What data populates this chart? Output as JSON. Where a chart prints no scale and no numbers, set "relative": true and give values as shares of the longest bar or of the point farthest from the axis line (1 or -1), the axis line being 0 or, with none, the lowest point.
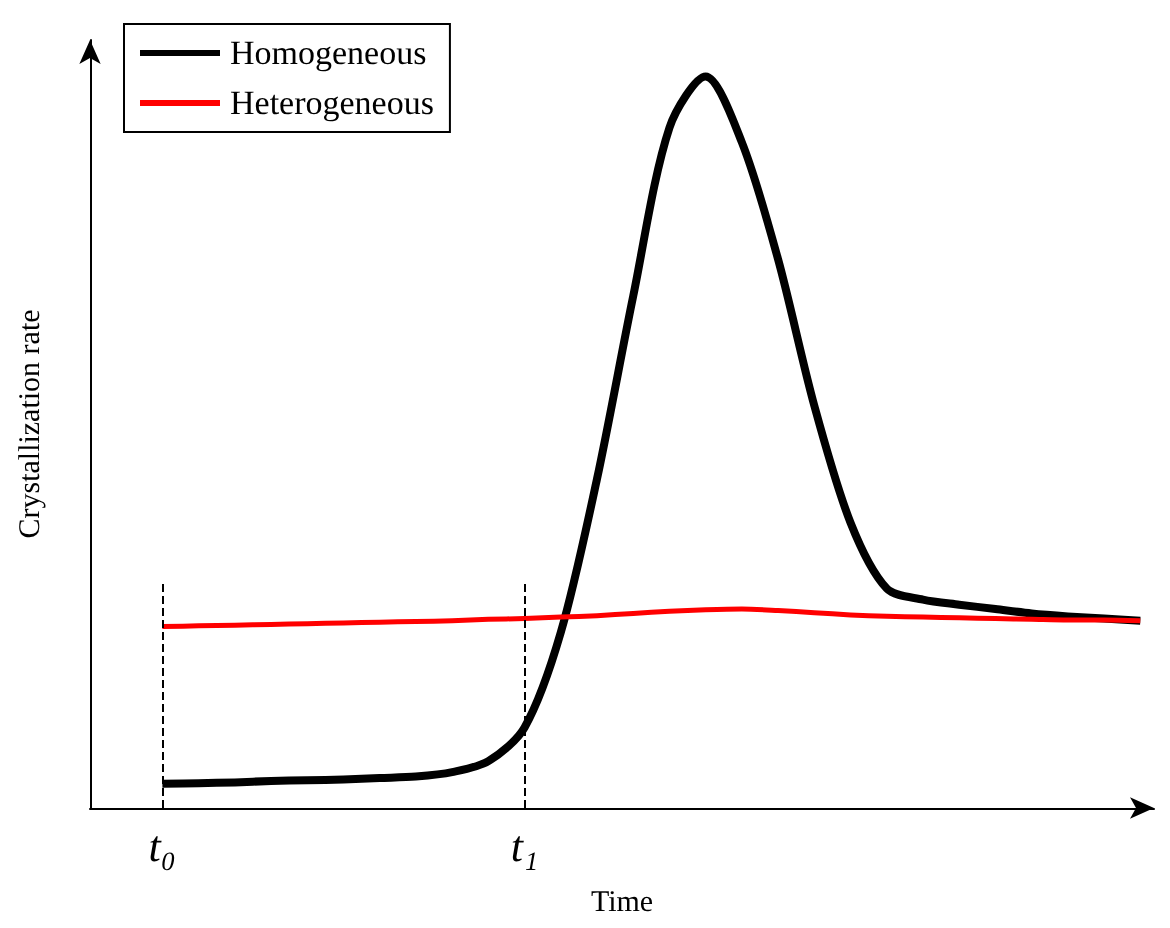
{
  "chart_data": {
    "type": "line",
    "xlabel": "Time",
    "ylabel": "Crystallization rate",
    "relative": true,
    "categories": [
      "t₀",
      null,
      null,
      null,
      null,
      null,
      null,
      null,
      null,
      null,
      "t₁",
      null,
      null,
      null,
      null,
      null,
      null,
      null,
      null,
      null,
      null,
      null,
      null,
      null,
      null,
      null,
      null,
      null
    ],
    "tick_labels": "x",
    "grid": false,
    "legend": "top left",
    "marker": "none",
    "line_style": "solid",
    "ref_lines": [
      {
        "axis": "x",
        "value": "t₀",
        "line_style": "dashed",
        "color": "#000000"
      },
      {
        "axis": "x",
        "value": "t₁",
        "line_style": "dashed",
        "color": "#000000"
      }
    ],
    "series": [
      {
        "name": "Homogeneous",
        "color": "#000000",
        "values": [
          0.033,
          0.034,
          0.035,
          0.037,
          0.038,
          0.039,
          0.041,
          0.043,
          0.049,
          0.064,
          0.11,
          0.24,
          0.45,
          0.7,
          0.93,
          1.0,
          0.91,
          0.75,
          0.55,
          0.39,
          0.3,
          0.285,
          0.278,
          0.272,
          0.266,
          0.262,
          0.259,
          0.256
        ]
      },
      {
        "name": "Heterogeneous",
        "color": "#ff0000",
        "values": [
          0.248,
          0.249,
          0.25,
          0.251,
          0.252,
          0.253,
          0.254,
          0.255,
          0.256,
          0.258,
          0.259,
          0.261,
          0.263,
          0.266,
          0.269,
          0.271,
          0.272,
          0.27,
          0.267,
          0.264,
          0.262,
          0.261,
          0.26,
          0.259,
          0.258,
          0.257,
          0.257,
          0.256
        ]
      }
    ]
  }
}
